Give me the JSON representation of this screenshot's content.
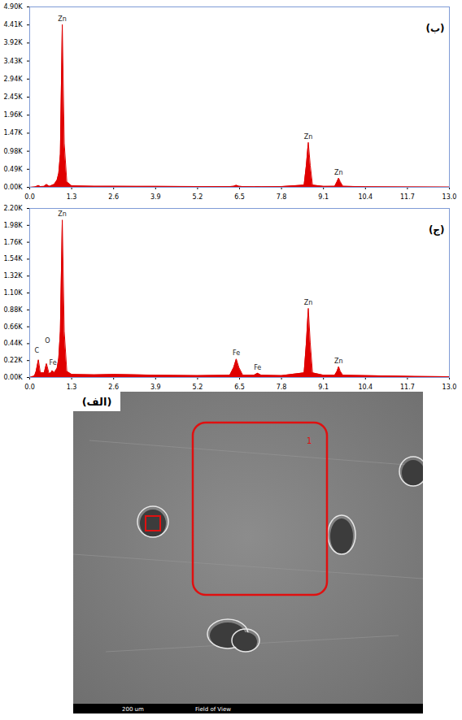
{
  "chart_data": [
    {
      "type": "area",
      "title": "(ب)",
      "color": "#e00000",
      "grid": false,
      "xlim": [
        0,
        13
      ],
      "xticks": [
        {
          "value": 0,
          "label": "0.0"
        },
        1.3,
        2.6,
        3.9,
        5.2,
        6.5,
        7.8,
        9.1,
        10.4,
        11.7,
        {
          "value": 13,
          "label": "13.0"
        }
      ],
      "ylim": [
        0,
        4900
      ],
      "yticks": [
        {
          "value": 0,
          "label": "0.00K"
        },
        {
          "value": 490,
          "label": "0.49K"
        },
        {
          "value": 980,
          "label": "0.98K"
        },
        {
          "value": 1470,
          "label": "1.47K"
        },
        {
          "value": 1960,
          "label": "1.96K"
        },
        {
          "value": 2450,
          "label": "2.45K"
        },
        {
          "value": 2940,
          "label": "2.94K"
        },
        {
          "value": 3430,
          "label": "3.43K"
        },
        {
          "value": 3920,
          "label": "3.92K"
        },
        {
          "value": 4410,
          "label": "4.41K"
        },
        {
          "value": 4900,
          "label": "4.90K"
        }
      ],
      "x": [
        0,
        0.15,
        0.2,
        0.27,
        0.33,
        0.45,
        0.52,
        0.6,
        0.66,
        0.7,
        0.76,
        0.85,
        0.9,
        0.95,
        1.01,
        1.07,
        1.15,
        1.3,
        2.0,
        2.6,
        3.3,
        3.9,
        5.2,
        6.2,
        6.32,
        6.4,
        6.48,
        6.6,
        6.95,
        7.06,
        7.17,
        7.8,
        8.5,
        8.57,
        8.63,
        8.69,
        8.76,
        9.1,
        9.45,
        9.52,
        9.57,
        9.62,
        9.7,
        10.4,
        11.7,
        13.0
      ],
      "values": [
        0,
        10,
        20,
        50,
        20,
        25,
        80,
        30,
        40,
        60,
        80,
        200,
        380,
        900,
        4420,
        1200,
        150,
        40,
        30,
        30,
        25,
        25,
        20,
        20,
        30,
        55,
        30,
        20,
        18,
        20,
        18,
        20,
        60,
        600,
        1220,
        600,
        60,
        25,
        30,
        150,
        250,
        150,
        30,
        15,
        10,
        8
      ],
      "annotations": [
        {
          "text": "Zn",
          "x": 1.01,
          "y": 4420
        },
        {
          "text": "Zn",
          "x": 8.63,
          "y": 1220
        },
        {
          "text": "Zn",
          "x": 9.57,
          "y": 250
        }
      ]
    },
    {
      "type": "area",
      "title": "(ج)",
      "color": "#e00000",
      "grid": false,
      "xlim": [
        0,
        13
      ],
      "xticks": [
        {
          "value": 0,
          "label": "0.0"
        },
        1.3,
        2.6,
        3.9,
        5.2,
        6.5,
        7.8,
        9.1,
        10.4,
        11.7,
        {
          "value": 13,
          "label": "13.0"
        }
      ],
      "ylim": [
        0,
        2200
      ],
      "yticks": [
        {
          "value": 0,
          "label": "0.00K"
        },
        {
          "value": 220,
          "label": "0.22K"
        },
        {
          "value": 440,
          "label": "0.44K"
        },
        {
          "value": 660,
          "label": "0.66K"
        },
        {
          "value": 880,
          "label": "0.88K"
        },
        {
          "value": 1100,
          "label": "1.10K"
        },
        {
          "value": 1320,
          "label": "1.32K"
        },
        {
          "value": 1540,
          "label": "1.54K"
        },
        {
          "value": 1760,
          "label": "1.76K"
        },
        {
          "value": 1980,
          "label": "1.98K"
        },
        {
          "value": 2200,
          "label": "2.20K"
        }
      ],
      "x": [
        0,
        0.15,
        0.2,
        0.27,
        0.33,
        0.45,
        0.52,
        0.6,
        0.66,
        0.7,
        0.76,
        0.85,
        0.9,
        0.95,
        1.01,
        1.07,
        1.15,
        1.3,
        2.0,
        2.6,
        3.3,
        3.9,
        5.2,
        6.2,
        6.32,
        6.4,
        6.48,
        6.6,
        6.95,
        7.06,
        7.17,
        7.8,
        8.5,
        8.57,
        8.63,
        8.69,
        8.76,
        9.1,
        9.45,
        9.52,
        9.57,
        9.62,
        9.7,
        10.4,
        11.7,
        13.0
      ],
      "values": [
        0,
        20,
        80,
        230,
        60,
        60,
        180,
        50,
        60,
        90,
        60,
        120,
        250,
        600,
        2050,
        600,
        80,
        40,
        35,
        40,
        35,
        30,
        25,
        30,
        130,
        240,
        130,
        30,
        30,
        55,
        30,
        25,
        60,
        450,
        900,
        450,
        60,
        30,
        30,
        80,
        140,
        80,
        30,
        25,
        15,
        10
      ],
      "annotations": [
        {
          "text": "C",
          "x": 0.22,
          "y": 280
        },
        {
          "text": "O",
          "x": 0.55,
          "y": 400
        },
        {
          "text": "Fe",
          "x": 0.72,
          "y": 120
        },
        {
          "text": "Zn",
          "x": 1.01,
          "y": 2050
        },
        {
          "text": "Fe",
          "x": 6.4,
          "y": 240
        },
        {
          "text": "Fe",
          "x": 7.06,
          "y": 55
        },
        {
          "text": "Zn",
          "x": 8.63,
          "y": 900
        },
        {
          "text": "Zn",
          "x": 9.57,
          "y": 140
        }
      ]
    }
  ],
  "image_panel": {
    "label": "(الف)",
    "region_label": "1",
    "scale_bar": "200 um",
    "field_label": "Field of View"
  }
}
